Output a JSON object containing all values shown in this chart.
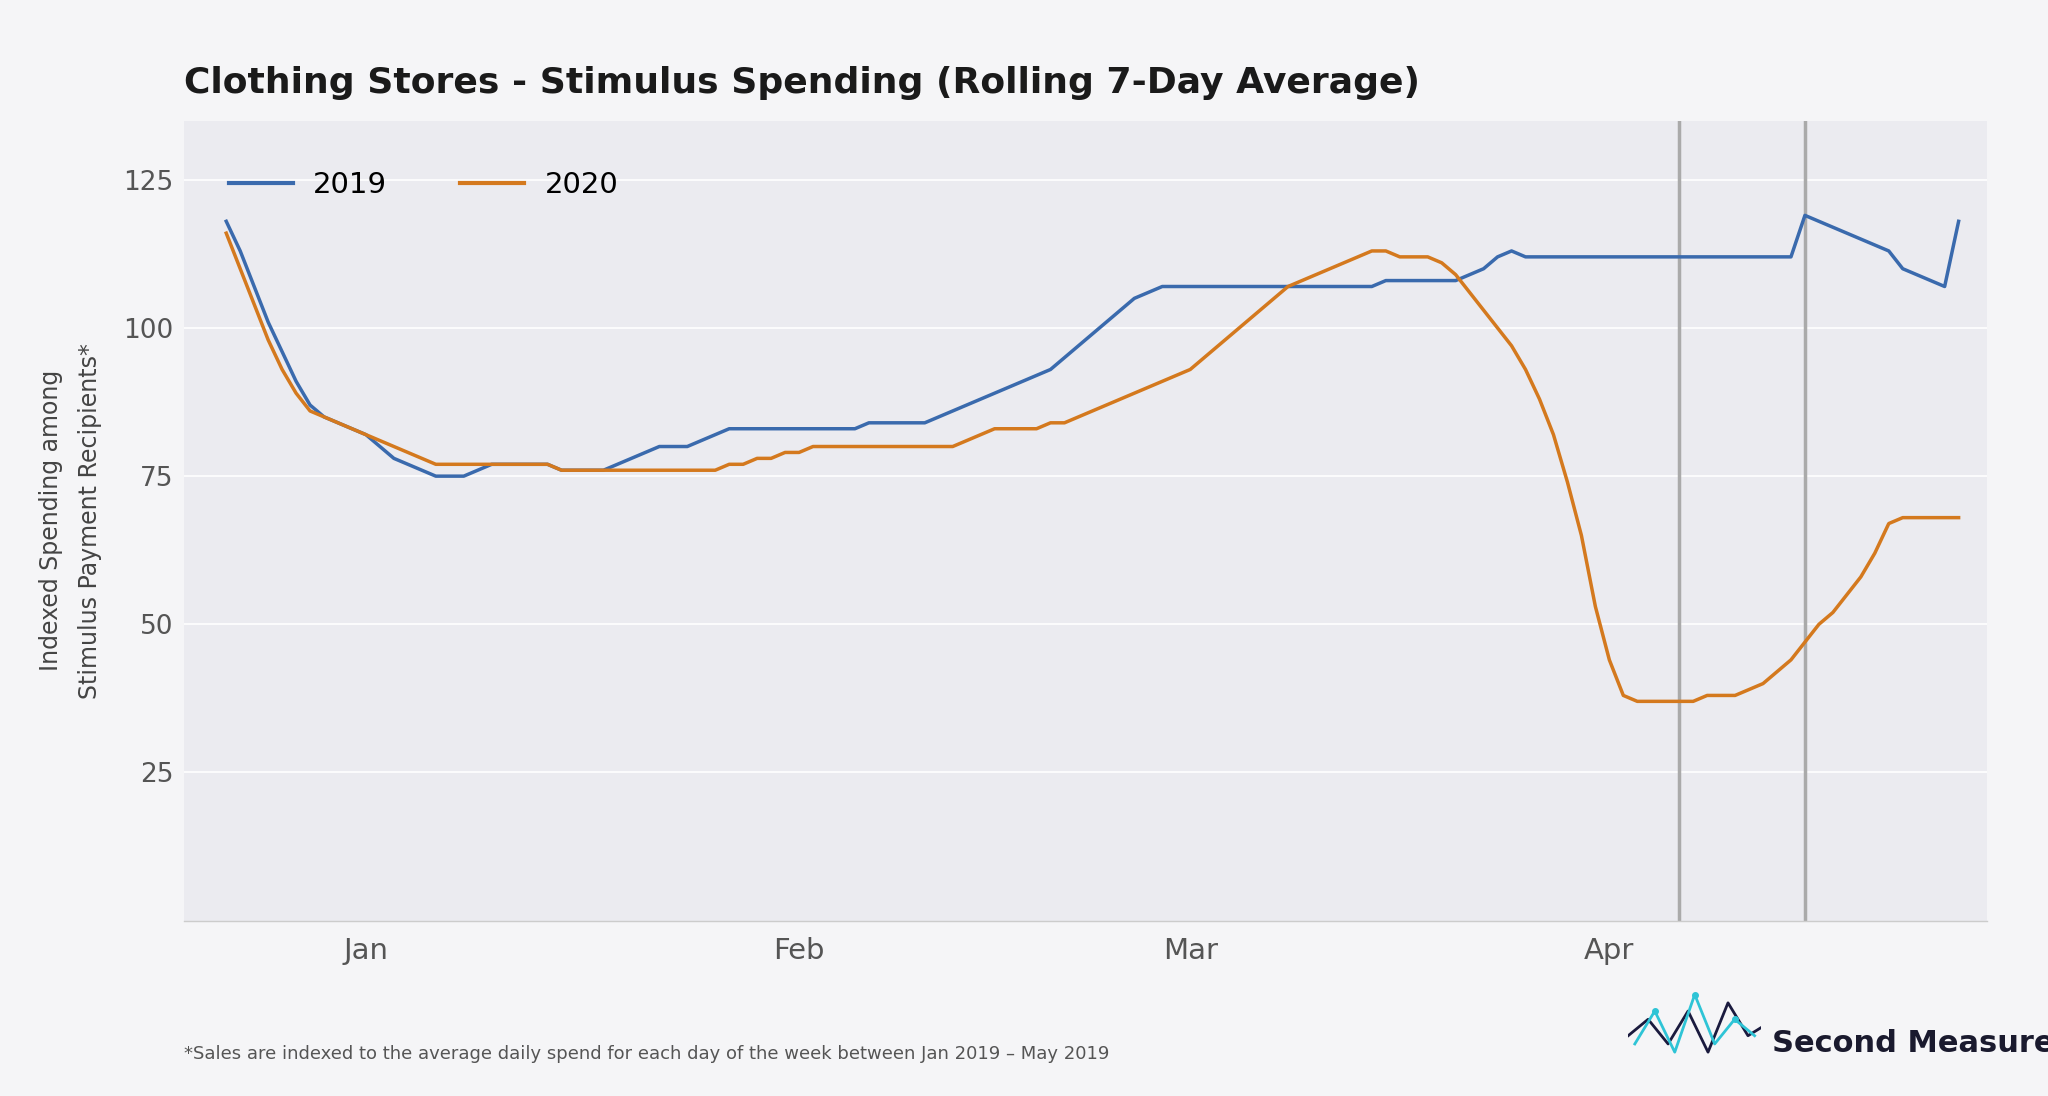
{
  "title": "Clothing Stores - Stimulus Spending (Rolling 7-Day Average)",
  "ylabel": "Indexed Spending among\nStimulus Payment Recipients*",
  "footnote": "*Sales are indexed to the average daily spend for each day of the week between Jan 2019 – May 2019",
  "watermark": "Second Measure",
  "fig_bg_color": "#f5f5f7",
  "plot_bg_color": "#ebebf0",
  "line_2019_color": "#3a6aad",
  "line_2020_color": "#d4791e",
  "vline_color": "#aaaaaa",
  "ylim": [
    0,
    135
  ],
  "yticks": [
    25,
    50,
    75,
    100,
    125
  ],
  "legend_labels": [
    "2019",
    "2020"
  ],
  "vline_day1": 104,
  "vline_day2": 113,
  "x_2019": [
    0,
    1,
    2,
    3,
    4,
    5,
    6,
    7,
    8,
    9,
    10,
    11,
    12,
    13,
    14,
    15,
    16,
    17,
    18,
    19,
    20,
    21,
    22,
    23,
    24,
    25,
    26,
    27,
    28,
    29,
    30,
    31,
    32,
    33,
    34,
    35,
    36,
    37,
    38,
    39,
    40,
    41,
    42,
    43,
    44,
    45,
    46,
    47,
    48,
    49,
    50,
    51,
    52,
    53,
    54,
    55,
    56,
    57,
    58,
    59,
    60,
    61,
    62,
    63,
    64,
    65,
    66,
    67,
    68,
    69,
    70,
    71,
    72,
    73,
    74,
    75,
    76,
    77,
    78,
    79,
    80,
    81,
    82,
    83,
    84,
    85,
    86,
    87,
    88,
    89,
    90,
    91,
    92,
    93,
    94,
    95,
    96,
    97,
    98,
    99,
    100,
    101,
    102,
    103,
    104,
    105,
    106,
    107,
    108,
    109,
    110,
    111,
    112,
    113,
    114,
    115,
    116,
    117,
    118,
    119,
    120,
    121,
    122,
    123,
    124
  ],
  "v_2019": [
    118,
    113,
    107,
    101,
    96,
    91,
    87,
    85,
    84,
    83,
    82,
    80,
    78,
    77,
    76,
    75,
    75,
    75,
    76,
    77,
    77,
    77,
    77,
    77,
    76,
    76,
    76,
    76,
    77,
    78,
    79,
    80,
    80,
    80,
    81,
    82,
    83,
    83,
    83,
    83,
    83,
    83,
    83,
    83,
    83,
    83,
    84,
    84,
    84,
    84,
    84,
    85,
    86,
    87,
    88,
    89,
    90,
    91,
    92,
    93,
    95,
    97,
    99,
    101,
    103,
    105,
    106,
    107,
    107,
    107,
    107,
    107,
    107,
    107,
    107,
    107,
    107,
    107,
    107,
    107,
    107,
    107,
    107,
    108,
    108,
    108,
    108,
    108,
    108,
    109,
    110,
    112,
    113,
    112,
    112,
    112,
    112,
    112,
    112,
    112,
    112,
    112,
    112,
    112,
    112,
    112,
    112,
    112,
    112,
    112,
    112,
    112,
    112,
    119,
    118,
    117,
    116,
    115,
    114,
    113,
    110,
    109,
    108,
    107,
    118
  ],
  "v_2020": [
    116,
    110,
    104,
    98,
    93,
    89,
    86,
    85,
    84,
    83,
    82,
    81,
    80,
    79,
    78,
    77,
    77,
    77,
    77,
    77,
    77,
    77,
    77,
    77,
    76,
    76,
    76,
    76,
    76,
    76,
    76,
    76,
    76,
    76,
    76,
    76,
    77,
    77,
    78,
    78,
    79,
    79,
    80,
    80,
    80,
    80,
    80,
    80,
    80,
    80,
    80,
    80,
    80,
    81,
    82,
    83,
    83,
    83,
    83,
    84,
    84,
    85,
    86,
    87,
    88,
    89,
    90,
    91,
    92,
    93,
    95,
    97,
    99,
    101,
    103,
    105,
    107,
    108,
    109,
    110,
    111,
    112,
    113,
    113,
    112,
    112,
    112,
    111,
    109,
    106,
    103,
    100,
    97,
    93,
    88,
    82,
    74,
    65,
    53,
    44,
    38,
    37,
    37,
    37,
    37,
    37,
    38,
    38,
    38,
    39,
    40,
    42,
    44,
    47,
    50,
    52,
    55,
    58,
    62,
    67,
    68,
    68,
    68,
    68,
    68
  ]
}
